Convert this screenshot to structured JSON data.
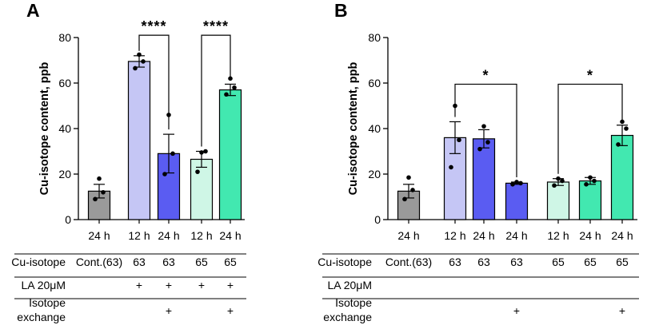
{
  "chart_data": [
    {
      "panel": "A",
      "type": "bar",
      "ylabel": "Cu-isotope content, ppb",
      "ylim": [
        0,
        80
      ],
      "yticks": [
        0,
        20,
        40,
        60,
        80
      ],
      "categories": [
        "24 h",
        "12 h",
        "24 h",
        "12 h",
        "24 h"
      ],
      "values": [
        12.5,
        69.5,
        29,
        26.5,
        57
      ],
      "errors": [
        3,
        2.5,
        8.5,
        3.5,
        2.5
      ],
      "colors": [
        "#9a9a9a",
        "#c5c6f5",
        "#5a5cf2",
        "#cff6e6",
        "#42e8b0"
      ],
      "points": [
        [
          9,
          12,
          18
        ],
        [
          66.5,
          69.5,
          72.5
        ],
        [
          20,
          29,
          46
        ],
        [
          21,
          30,
          29.5
        ],
        [
          55,
          58,
          62
        ]
      ],
      "significance": [
        {
          "from": 1,
          "to": 2,
          "label": "****",
          "y": 81
        },
        {
          "from": 3,
          "to": 4,
          "label": "****",
          "y": 81
        }
      ],
      "table": {
        "rows": [
          {
            "label": "Cu-isotope",
            "cells": [
              "Cont.(63)",
              "63",
              "63",
              "65",
              "65"
            ]
          },
          {
            "label": "LA 20μM",
            "cells": [
              "",
              "+",
              "+",
              "+",
              "+"
            ]
          },
          {
            "label": "Isotope exchange",
            "label_lines": [
              "Isotope",
              "exchange"
            ],
            "cells": [
              "",
              "",
              "+",
              "",
              "+"
            ]
          }
        ]
      }
    },
    {
      "panel": "B",
      "type": "bar",
      "ylabel": "Cu-isotope content, ppb",
      "ylim": [
        0,
        80
      ],
      "yticks": [
        0,
        20,
        40,
        60,
        80
      ],
      "categories": [
        "24 h",
        "12 h",
        "24 h",
        "24 h",
        "12 h",
        "24 h",
        "24 h"
      ],
      "values": [
        12.5,
        36,
        35.5,
        16,
        16.5,
        17,
        37
      ],
      "errors": [
        3,
        7,
        4,
        0.5,
        1.5,
        1.5,
        4.5
      ],
      "colors": [
        "#9a9a9a",
        "#c5c6f5",
        "#5a5cf2",
        "#5a5cf2",
        "#cff6e6",
        "#42e8b0",
        "#42e8b0"
      ],
      "points": [
        [
          9,
          13,
          18.5
        ],
        [
          23,
          35,
          50
        ],
        [
          31,
          34,
          41
        ],
        [
          15.5,
          16,
          16.5
        ],
        [
          15,
          17,
          18
        ],
        [
          15.5,
          17,
          18.5
        ],
        [
          33,
          40,
          43
        ]
      ],
      "significance": [
        {
          "from": 1,
          "to": 3,
          "label": "*",
          "y": 59.5
        },
        {
          "from": 4,
          "to": 6,
          "label": "*",
          "y": 59.5
        }
      ],
      "table": {
        "rows": [
          {
            "label": "Cu-isotope",
            "cells": [
              "Cont.(63)",
              "63",
              "63",
              "63",
              "65",
              "65",
              "65"
            ]
          },
          {
            "label": "LA 20μM",
            "cells": [
              "",
              "",
              "",
              "",
              "",
              "",
              ""
            ]
          },
          {
            "label": "Isotope exchange",
            "label_lines": [
              "Isotope",
              "exchange"
            ],
            "cells": [
              "",
              "",
              "",
              "+",
              "",
              "",
              "+"
            ]
          }
        ]
      }
    }
  ]
}
